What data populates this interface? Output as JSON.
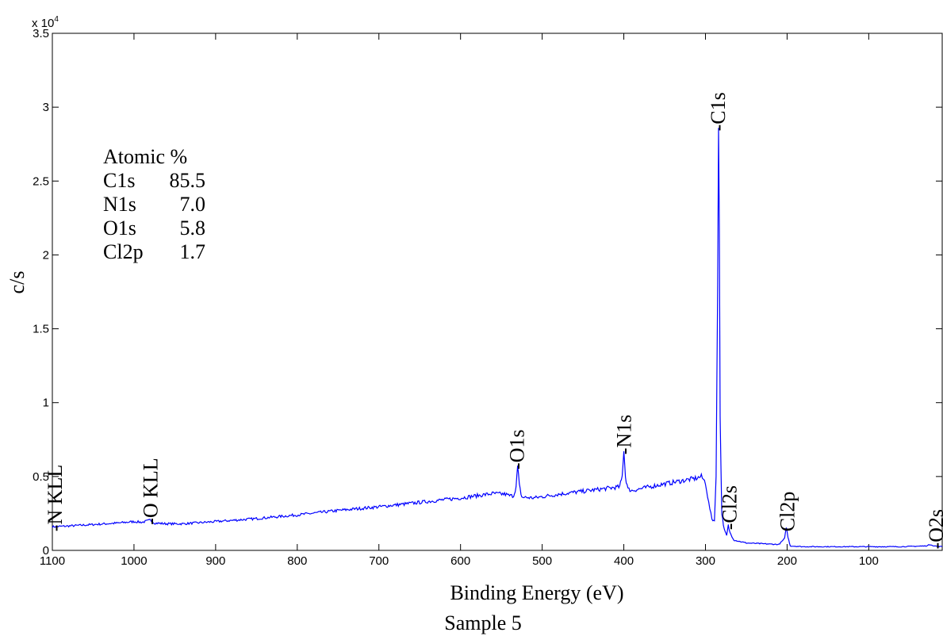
{
  "chart_data": {
    "type": "line",
    "title": "Sample 5",
    "xlabel": "Binding Energy (eV)",
    "ylabel": "c/s",
    "y_exponent_label": "x 10",
    "y_exponent": "4",
    "xlim": [
      1100,
      10
    ],
    "x_reversed": true,
    "ylim": [
      0,
      35000
    ],
    "grid": false,
    "x_ticks": [
      1100,
      1000,
      900,
      800,
      700,
      600,
      500,
      400,
      300,
      200,
      100
    ],
    "x_tick_labels": [
      "1100",
      "1000",
      "900",
      "800",
      "700",
      "600",
      "500",
      "400",
      "300",
      "200",
      "100"
    ],
    "y_ticks": [
      0,
      5000,
      10000,
      15000,
      20000,
      25000,
      30000,
      35000
    ],
    "y_tick_labels": [
      "0",
      "0.5",
      "1",
      "1.5",
      "2",
      "2.5",
      "3",
      "3.5"
    ],
    "series": [
      {
        "color": "#0000ff",
        "points": [
          [
            1100,
            1600
          ],
          [
            1080,
            1650
          ],
          [
            1050,
            1750
          ],
          [
            1020,
            1850
          ],
          [
            1000,
            1950
          ],
          [
            990,
            1900
          ],
          [
            980,
            2050
          ],
          [
            975,
            1850
          ],
          [
            960,
            1800
          ],
          [
            940,
            1800
          ],
          [
            900,
            1950
          ],
          [
            850,
            2150
          ],
          [
            800,
            2400
          ],
          [
            750,
            2700
          ],
          [
            700,
            2950
          ],
          [
            650,
            3250
          ],
          [
            600,
            3550
          ],
          [
            560,
            3850
          ],
          [
            545,
            3800
          ],
          [
            540,
            3700
          ],
          [
            535,
            3700
          ],
          [
            532,
            4300
          ],
          [
            530,
            5700
          ],
          [
            528,
            4400
          ],
          [
            525,
            3600
          ],
          [
            510,
            3550
          ],
          [
            480,
            3800
          ],
          [
            450,
            4000
          ],
          [
            420,
            4200
          ],
          [
            405,
            4300
          ],
          [
            402,
            5000
          ],
          [
            400,
            6800
          ],
          [
            398,
            5000
          ],
          [
            395,
            4150
          ],
          [
            390,
            4050
          ],
          [
            360,
            4400
          ],
          [
            330,
            4700
          ],
          [
            310,
            4900
          ],
          [
            305,
            5000
          ],
          [
            300,
            4600
          ],
          [
            296,
            3200
          ],
          [
            292,
            2100
          ],
          [
            289,
            2000
          ],
          [
            287,
            5000
          ],
          [
            285,
            18000
          ],
          [
            284,
            28700
          ],
          [
            283,
            22000
          ],
          [
            282,
            9000
          ],
          [
            280,
            2500
          ],
          [
            277,
            1400
          ],
          [
            274,
            1000
          ],
          [
            272,
            1700
          ],
          [
            270,
            1200
          ],
          [
            265,
            700
          ],
          [
            250,
            500
          ],
          [
            230,
            450
          ],
          [
            210,
            400
          ],
          [
            203,
            800
          ],
          [
            201,
            1600
          ],
          [
            199,
            900
          ],
          [
            196,
            300
          ],
          [
            180,
            250
          ],
          [
            150,
            250
          ],
          [
            100,
            250
          ],
          [
            60,
            250
          ],
          [
            30,
            300
          ],
          [
            24,
            400
          ],
          [
            20,
            300
          ],
          [
            10,
            250
          ]
        ]
      }
    ],
    "annotations": [
      {
        "text": "-C1s",
        "x": 285,
        "y": 28700
      },
      {
        "text": "-N1s",
        "x": 400,
        "y": 6800
      },
      {
        "text": "-O1s",
        "x": 531,
        "y": 5800
      },
      {
        "text": "-O KLL",
        "x": 980,
        "y": 2050
      },
      {
        "text": "-N KLL",
        "x": 1097,
        "y": 1600
      },
      {
        "text": "-Cl2s",
        "x": 271,
        "y": 1700
      },
      {
        "text": "Cl2p",
        "x": 200,
        "y": 1600
      },
      {
        "text": "-O2s",
        "x": 18,
        "y": 400
      }
    ],
    "inset_table": {
      "header": "Atomic %",
      "rows": [
        {
          "label": "C1s",
          "value": "85.5"
        },
        {
          "label": "N1s",
          "value": "7.0"
        },
        {
          "label": "O1s",
          "value": "5.8"
        },
        {
          "label": "Cl2p",
          "value": "1.7"
        }
      ]
    }
  }
}
